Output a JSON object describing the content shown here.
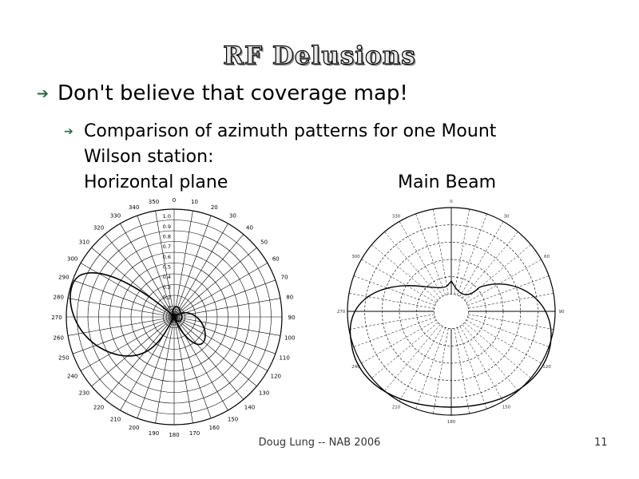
{
  "header": {
    "title": "RF Delusions"
  },
  "bullets": [
    {
      "text": "Don't believe that coverage map!",
      "sub": [
        {
          "lines": [
            "Comparison of azimuth patterns for one Mount",
            "Wilson station:"
          ]
        }
      ]
    }
  ],
  "diagrams": [
    {
      "caption": "Horizontal plane",
      "angle_labels": [
        0,
        10,
        20,
        30,
        40,
        50,
        60,
        70,
        80,
        90,
        100,
        110,
        120,
        130,
        140,
        150,
        160,
        170,
        180,
        190,
        200,
        210,
        220,
        230,
        240,
        250,
        260,
        270,
        280,
        290,
        300,
        310,
        320,
        330,
        340,
        350
      ],
      "radial_labels": [
        "1.0",
        "0.9",
        "0.8",
        "0.7",
        "0.6",
        "0.5",
        "0.4",
        "0.3",
        "0.2",
        "0.1"
      ]
    },
    {
      "caption": "Main Beam",
      "angle_labels": [
        0,
        30,
        60,
        90,
        120,
        150,
        180,
        210,
        240,
        270,
        300,
        330
      ]
    }
  ],
  "footer": {
    "text": "Doug Lung -- NAB 2006",
    "page": "11"
  }
}
